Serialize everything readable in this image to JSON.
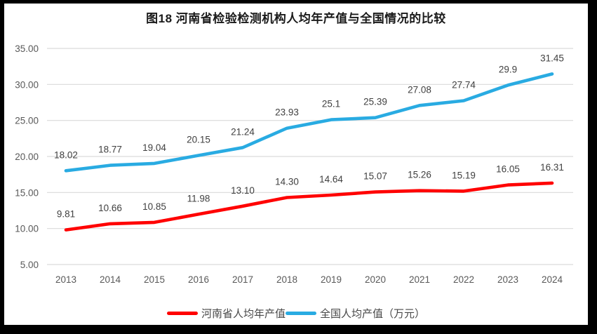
{
  "chart_data": {
    "type": "line",
    "title": "图18  河南省检验检测机构人均年产值与全国情况的比较",
    "categories": [
      "2013",
      "2014",
      "2015",
      "2016",
      "2017",
      "2018",
      "2019",
      "2020",
      "2021",
      "2022",
      "2023",
      "2024"
    ],
    "series": [
      {
        "name": "河南省人均年产值",
        "color": "#FF0000",
        "values": [
          9.81,
          10.66,
          10.85,
          11.98,
          13.1,
          14.3,
          14.64,
          15.07,
          15.26,
          15.19,
          16.05,
          16.31
        ],
        "labels": [
          "9.81",
          "10.66",
          "10.85",
          "11.98",
          "13.10",
          "14.30",
          "14.64",
          "15.07",
          "15.26",
          "15.19",
          "16.05",
          "16.31"
        ]
      },
      {
        "name": "全国人均产值（万元）",
        "color": "#29ABE2",
        "values": [
          18.02,
          18.77,
          19.04,
          20.15,
          21.24,
          23.93,
          25.1,
          25.39,
          27.08,
          27.74,
          29.9,
          31.45
        ],
        "labels": [
          "18.02",
          "18.77",
          "19.04",
          "20.15",
          "21.24",
          "23.93",
          "25.1",
          "25.39",
          "27.08",
          "27.74",
          "29.9",
          "31.45"
        ]
      }
    ],
    "xlabel": "",
    "ylabel": "",
    "ylim": [
      5,
      35
    ],
    "y_tick_labels": [
      "35.00",
      "30.00",
      "25.00",
      "20.00",
      "15.00",
      "10.00",
      "5.00"
    ],
    "grid": true,
    "legend_position": "bottom",
    "grid_color": "#D9D9D9",
    "axis_text_color": "#595959",
    "label_text_color": "#404040"
  },
  "legend": {
    "items": [
      {
        "label": "河南省人均年产值",
        "color": "#FF0000"
      },
      {
        "label": "全国人均产值（万元）",
        "color": "#29ABE2"
      }
    ]
  }
}
